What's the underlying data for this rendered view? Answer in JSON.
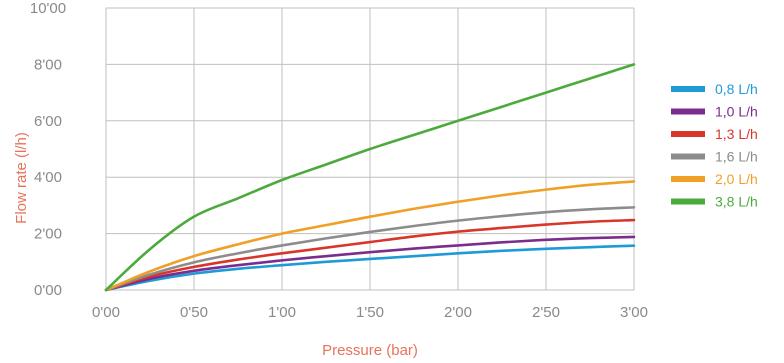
{
  "chart_data": {
    "type": "line",
    "xlabel": "Pressure (bar)",
    "ylabel": "Flow rate (l/h)",
    "xlim": [
      0,
      3.0
    ],
    "ylim": [
      0,
      10.0
    ],
    "x_ticks": [
      {
        "value": 0.0,
        "label": "0'00"
      },
      {
        "value": 0.5,
        "label": "0'50"
      },
      {
        "value": 1.0,
        "label": "1'00"
      },
      {
        "value": 1.5,
        "label": "1'50"
      },
      {
        "value": 2.0,
        "label": "2'00"
      },
      {
        "value": 2.5,
        "label": "2'50"
      },
      {
        "value": 3.0,
        "label": "3'00"
      }
    ],
    "y_ticks": [
      {
        "value": 0,
        "label": "0'00"
      },
      {
        "value": 2,
        "label": "2'00"
      },
      {
        "value": 4,
        "label": "4'00"
      },
      {
        "value": 6,
        "label": "6'00"
      },
      {
        "value": 8,
        "label": "8'00"
      },
      {
        "value": 10,
        "label": "10'00"
      }
    ],
    "grid": true,
    "legend_position": "right",
    "x": [
      0,
      0.25,
      0.5,
      0.75,
      1.0,
      1.25,
      1.5,
      1.75,
      2.0,
      2.25,
      2.5,
      2.75,
      3.0
    ],
    "series": [
      {
        "name": "0,8 L/h",
        "color": "#1e9bd7",
        "values": [
          0,
          0.33,
          0.58,
          0.75,
          0.88,
          1.0,
          1.1,
          1.2,
          1.3,
          1.39,
          1.46,
          1.52,
          1.57
        ]
      },
      {
        "name": "1,0 L/h",
        "color": "#7b2d8e",
        "values": [
          0,
          0.4,
          0.68,
          0.88,
          1.05,
          1.2,
          1.34,
          1.47,
          1.58,
          1.69,
          1.78,
          1.84,
          1.88
        ]
      },
      {
        "name": "1,3 L/h",
        "color": "#d9362b",
        "values": [
          0,
          0.48,
          0.82,
          1.08,
          1.3,
          1.5,
          1.7,
          1.9,
          2.07,
          2.2,
          2.32,
          2.42,
          2.48
        ]
      },
      {
        "name": "1,6 L/h",
        "color": "#8c8c8c",
        "values": [
          0,
          0.55,
          0.98,
          1.3,
          1.58,
          1.83,
          2.06,
          2.27,
          2.46,
          2.62,
          2.76,
          2.86,
          2.93
        ]
      },
      {
        "name": "2,0 L/h",
        "color": "#f0a027",
        "values": [
          0,
          0.66,
          1.2,
          1.62,
          2.0,
          2.3,
          2.6,
          2.88,
          3.13,
          3.36,
          3.56,
          3.73,
          3.85
        ]
      },
      {
        "name": "3,8 L/h",
        "color": "#4caa3c",
        "values": [
          0,
          1.45,
          2.6,
          3.25,
          3.9,
          4.45,
          5.0,
          5.5,
          6.0,
          6.5,
          7.0,
          7.5,
          8.0
        ]
      }
    ]
  }
}
